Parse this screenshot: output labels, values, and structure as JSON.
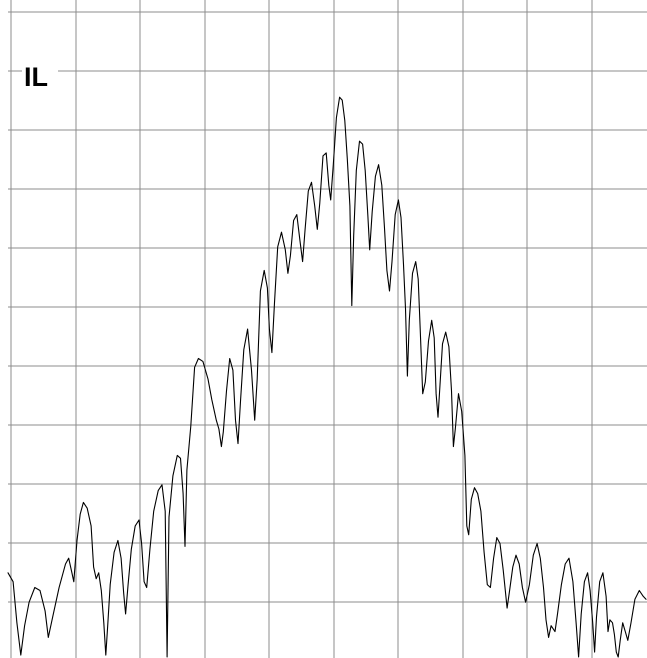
{
  "chart_data": {
    "type": "line",
    "trace_label": "IL",
    "grid": true,
    "x_divisions": 10,
    "y_divisions": 11,
    "xlim": [
      0,
      1
    ],
    "ylim": [
      0,
      11
    ],
    "series": [
      {
        "points": [
          [
            0.0,
            1.45
          ],
          [
            0.008,
            1.3
          ],
          [
            0.014,
            0.6
          ],
          [
            0.02,
            0.05
          ],
          [
            0.026,
            0.55
          ],
          [
            0.033,
            0.95
          ],
          [
            0.042,
            1.2
          ],
          [
            0.05,
            1.15
          ],
          [
            0.058,
            0.8
          ],
          [
            0.063,
            0.35
          ],
          [
            0.07,
            0.7
          ],
          [
            0.08,
            1.2
          ],
          [
            0.09,
            1.6
          ],
          [
            0.095,
            1.7
          ],
          [
            0.1,
            1.45
          ],
          [
            0.103,
            1.3
          ],
          [
            0.108,
            2.0
          ],
          [
            0.113,
            2.45
          ],
          [
            0.118,
            2.65
          ],
          [
            0.124,
            2.55
          ],
          [
            0.13,
            2.25
          ],
          [
            0.134,
            1.55
          ],
          [
            0.138,
            1.35
          ],
          [
            0.142,
            1.45
          ],
          [
            0.146,
            1.15
          ],
          [
            0.15,
            0.6
          ],
          [
            0.153,
            0.05
          ],
          [
            0.156,
            0.55
          ],
          [
            0.16,
            1.25
          ],
          [
            0.166,
            1.8
          ],
          [
            0.172,
            2.0
          ],
          [
            0.177,
            1.7
          ],
          [
            0.181,
            1.1
          ],
          [
            0.184,
            0.75
          ],
          [
            0.188,
            1.25
          ],
          [
            0.193,
            1.85
          ],
          [
            0.199,
            2.25
          ],
          [
            0.205,
            2.35
          ],
          [
            0.209,
            1.95
          ],
          [
            0.213,
            1.3
          ],
          [
            0.217,
            1.2
          ],
          [
            0.222,
            1.85
          ],
          [
            0.228,
            2.5
          ],
          [
            0.235,
            2.85
          ],
          [
            0.241,
            2.95
          ],
          [
            0.246,
            2.5
          ],
          [
            0.249,
            0.0
          ],
          [
            0.252,
            2.4
          ],
          [
            0.258,
            3.1
          ],
          [
            0.265,
            3.45
          ],
          [
            0.27,
            3.4
          ],
          [
            0.274,
            2.8
          ],
          [
            0.277,
            1.9
          ],
          [
            0.28,
            3.2
          ],
          [
            0.286,
            3.95
          ],
          [
            0.292,
            4.95
          ],
          [
            0.298,
            5.1
          ],
          [
            0.305,
            5.05
          ],
          [
            0.313,
            4.75
          ],
          [
            0.319,
            4.4
          ],
          [
            0.326,
            4.05
          ],
          [
            0.33,
            3.9
          ],
          [
            0.334,
            3.6
          ],
          [
            0.337,
            3.85
          ],
          [
            0.342,
            4.55
          ],
          [
            0.347,
            5.1
          ],
          [
            0.352,
            4.9
          ],
          [
            0.356,
            4.05
          ],
          [
            0.36,
            3.65
          ],
          [
            0.364,
            4.4
          ],
          [
            0.369,
            5.25
          ],
          [
            0.375,
            5.6
          ],
          [
            0.381,
            4.9
          ],
          [
            0.386,
            4.05
          ],
          [
            0.39,
            4.75
          ],
          [
            0.395,
            6.25
          ],
          [
            0.401,
            6.6
          ],
          [
            0.406,
            6.3
          ],
          [
            0.409,
            5.6
          ],
          [
            0.413,
            5.2
          ],
          [
            0.417,
            6.05
          ],
          [
            0.422,
            7.0
          ],
          [
            0.428,
            7.25
          ],
          [
            0.434,
            6.95
          ],
          [
            0.438,
            6.55
          ],
          [
            0.442,
            6.85
          ],
          [
            0.447,
            7.45
          ],
          [
            0.452,
            7.55
          ],
          [
            0.457,
            7.1
          ],
          [
            0.461,
            6.75
          ],
          [
            0.465,
            7.3
          ],
          [
            0.47,
            7.95
          ],
          [
            0.475,
            8.1
          ],
          [
            0.48,
            7.7
          ],
          [
            0.484,
            7.3
          ],
          [
            0.488,
            7.75
          ],
          [
            0.493,
            8.55
          ],
          [
            0.498,
            8.6
          ],
          [
            0.502,
            8.05
          ],
          [
            0.505,
            7.8
          ],
          [
            0.509,
            8.4
          ],
          [
            0.514,
            9.2
          ],
          [
            0.519,
            9.55
          ],
          [
            0.523,
            9.5
          ],
          [
            0.527,
            9.15
          ],
          [
            0.531,
            8.5
          ],
          [
            0.535,
            7.7
          ],
          [
            0.538,
            6.0
          ],
          [
            0.541,
            7.2
          ],
          [
            0.545,
            8.3
          ],
          [
            0.55,
            8.8
          ],
          [
            0.555,
            8.75
          ],
          [
            0.559,
            8.3
          ],
          [
            0.563,
            7.55
          ],
          [
            0.566,
            6.95
          ],
          [
            0.57,
            7.6
          ],
          [
            0.575,
            8.2
          ],
          [
            0.58,
            8.4
          ],
          [
            0.585,
            8.05
          ],
          [
            0.589,
            7.35
          ],
          [
            0.593,
            6.6
          ],
          [
            0.597,
            6.25
          ],
          [
            0.601,
            6.75
          ],
          [
            0.606,
            7.55
          ],
          [
            0.611,
            7.8
          ],
          [
            0.615,
            7.5
          ],
          [
            0.619,
            6.7
          ],
          [
            0.622,
            5.95
          ],
          [
            0.625,
            4.8
          ],
          [
            0.628,
            5.75
          ],
          [
            0.633,
            6.55
          ],
          [
            0.638,
            6.75
          ],
          [
            0.642,
            6.45
          ],
          [
            0.645,
            5.6
          ],
          [
            0.649,
            4.5
          ],
          [
            0.653,
            4.7
          ],
          [
            0.658,
            5.4
          ],
          [
            0.663,
            5.75
          ],
          [
            0.667,
            5.45
          ],
          [
            0.67,
            4.5
          ],
          [
            0.673,
            4.1
          ],
          [
            0.676,
            4.65
          ],
          [
            0.68,
            5.35
          ],
          [
            0.685,
            5.55
          ],
          [
            0.69,
            5.3
          ],
          [
            0.694,
            4.55
          ],
          [
            0.697,
            3.6
          ],
          [
            0.7,
            3.9
          ],
          [
            0.705,
            4.5
          ],
          [
            0.71,
            4.2
          ],
          [
            0.715,
            3.45
          ],
          [
            0.718,
            2.25
          ],
          [
            0.721,
            2.1
          ],
          [
            0.725,
            2.7
          ],
          [
            0.73,
            2.9
          ],
          [
            0.735,
            2.8
          ],
          [
            0.74,
            2.5
          ],
          [
            0.745,
            1.8
          ],
          [
            0.75,
            1.25
          ],
          [
            0.755,
            1.2
          ],
          [
            0.76,
            1.7
          ],
          [
            0.765,
            2.05
          ],
          [
            0.77,
            1.95
          ],
          [
            0.775,
            1.5
          ],
          [
            0.781,
            0.85
          ],
          [
            0.785,
            1.15
          ],
          [
            0.79,
            1.55
          ],
          [
            0.795,
            1.75
          ],
          [
            0.8,
            1.6
          ],
          [
            0.805,
            1.2
          ],
          [
            0.81,
            0.95
          ],
          [
            0.816,
            1.25
          ],
          [
            0.822,
            1.75
          ],
          [
            0.828,
            1.95
          ],
          [
            0.833,
            1.7
          ],
          [
            0.838,
            1.2
          ],
          [
            0.842,
            0.65
          ],
          [
            0.846,
            0.35
          ],
          [
            0.85,
            0.55
          ],
          [
            0.856,
            0.45
          ],
          [
            0.86,
            0.75
          ],
          [
            0.866,
            1.25
          ],
          [
            0.872,
            1.6
          ],
          [
            0.878,
            1.7
          ],
          [
            0.884,
            1.3
          ],
          [
            0.889,
            0.6
          ],
          [
            0.893,
            0.0
          ],
          [
            0.897,
            0.75
          ],
          [
            0.902,
            1.3
          ],
          [
            0.907,
            1.45
          ],
          [
            0.911,
            1.15
          ],
          [
            0.915,
            0.6
          ],
          [
            0.918,
            0.1
          ],
          [
            0.921,
            0.7
          ],
          [
            0.926,
            1.3
          ],
          [
            0.931,
            1.45
          ],
          [
            0.936,
            1.05
          ],
          [
            0.939,
            0.45
          ],
          [
            0.942,
            0.65
          ],
          [
            0.946,
            0.6
          ],
          [
            0.949,
            0.4
          ],
          [
            0.952,
            0.1
          ],
          [
            0.955,
            0.0
          ],
          [
            0.958,
            0.3
          ],
          [
            0.962,
            0.6
          ],
          [
            0.966,
            0.45
          ],
          [
            0.97,
            0.3
          ],
          [
            0.975,
            0.6
          ],
          [
            0.981,
            1.0
          ],
          [
            0.988,
            1.15
          ],
          [
            0.994,
            1.05
          ],
          [
            1.0,
            1.0
          ]
        ]
      }
    ]
  }
}
